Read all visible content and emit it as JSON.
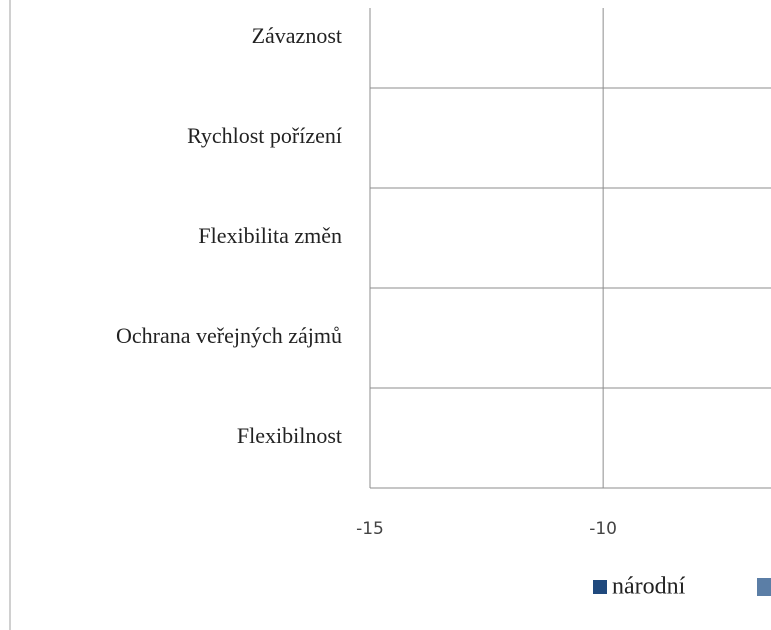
{
  "chart_data": {
    "type": "barh",
    "categories": [
      "Závaznost",
      "Rychlost pořízení",
      "Flexibilita změn",
      "Ochrana veřejných zájmů",
      "Flexibilnost"
    ],
    "series": [
      {
        "name": "národní",
        "color": "#1f497d"
      }
    ],
    "xlim": [
      -15,
      -6.4
    ],
    "xticks": [
      -15,
      -10
    ],
    "grid": true
  }
}
